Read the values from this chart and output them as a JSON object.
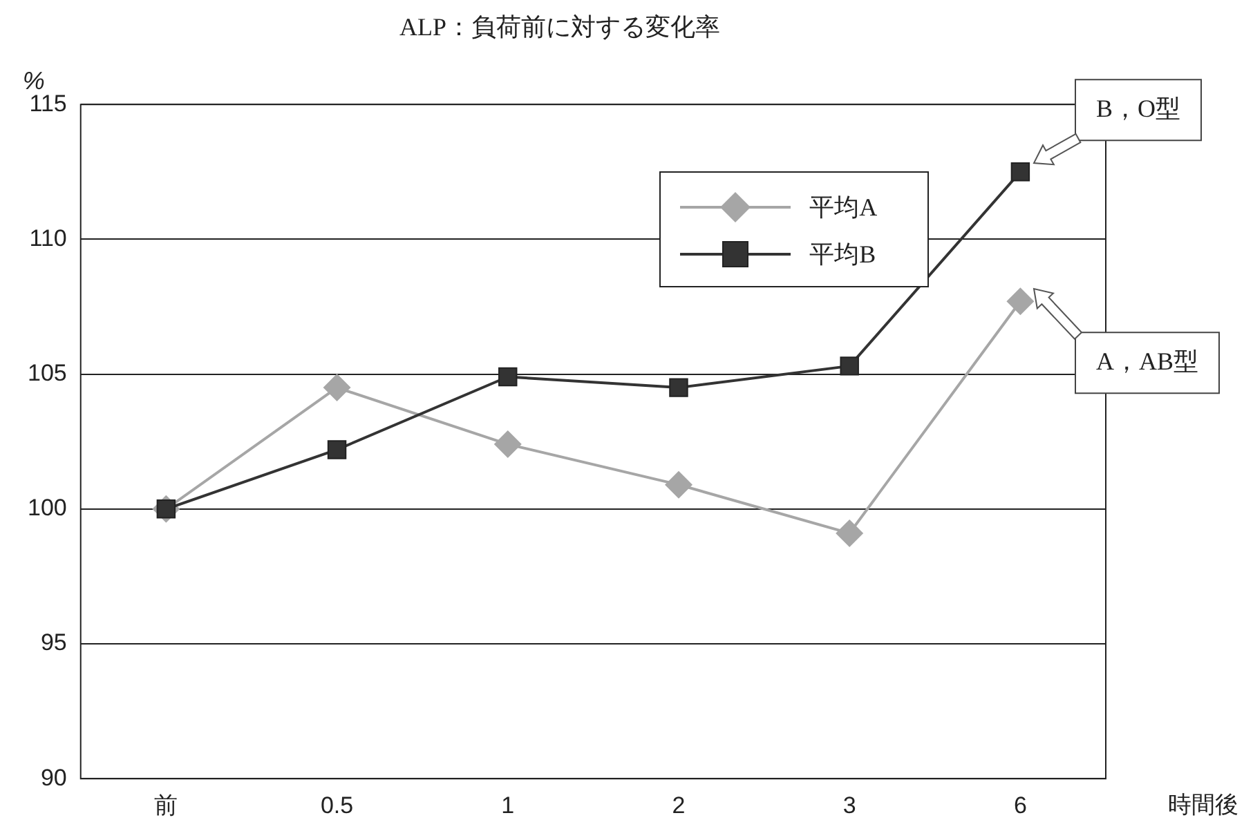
{
  "chart_data": {
    "type": "line",
    "title": "ALP：負荷前に対する変化率",
    "ylabel": "%",
    "xlabel": "時間後",
    "categories": [
      "前",
      "0.5",
      "1",
      "2",
      "3",
      "6"
    ],
    "series": [
      {
        "name": "平均A",
        "color": "#a6a6a6",
        "marker": "diamond",
        "values": [
          100,
          104.5,
          102.4,
          100.9,
          99.1,
          107.7
        ]
      },
      {
        "name": "平均B",
        "color": "#333333",
        "marker": "square",
        "values": [
          100,
          102.2,
          104.9,
          104.5,
          105.3,
          112.5
        ]
      }
    ],
    "ylim": [
      90,
      115
    ],
    "yticks": [
      90,
      95,
      100,
      105,
      110,
      115
    ],
    "grid": "y",
    "legend": "top",
    "annotations": [
      "B，O型",
      "A，AB型"
    ]
  }
}
